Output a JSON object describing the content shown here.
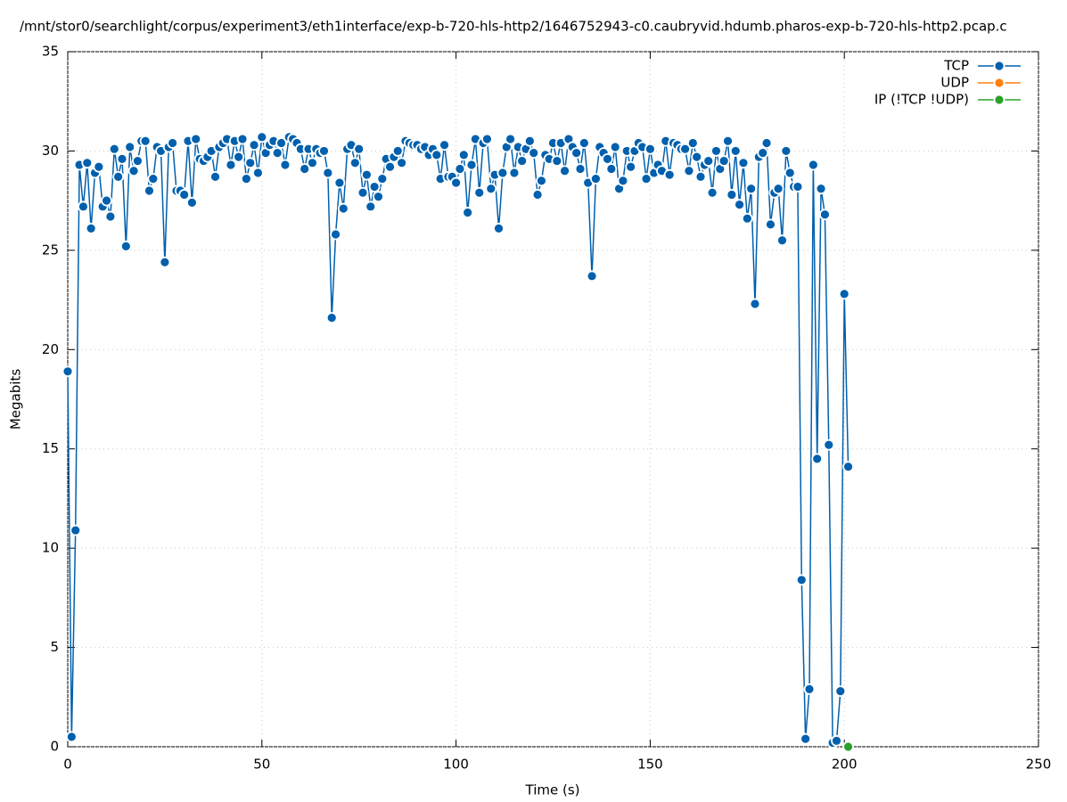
{
  "chart_data": {
    "type": "line",
    "title": "/mnt/stor0/searchlight/corpus/experiment3/eth1interface/exp-b-720-hls-http2/1646752943-c0.caubryvid.hdumb.pharos-exp-b-720-hls-http2.pcap.c",
    "x_label": "Time (s)",
    "y_label": "Megabits",
    "xlim": [
      0,
      250
    ],
    "xticks": [
      0,
      50,
      100,
      150,
      200,
      250
    ],
    "ylim": [
      0,
      35
    ],
    "yticks": [
      0,
      5,
      10,
      15,
      20,
      25,
      30,
      35
    ],
    "grid": true,
    "legend": "top-right",
    "series": [
      {
        "name": "TCP",
        "color": "#0060ad",
        "x": [
          0,
          1,
          2,
          3,
          4,
          5,
          6,
          7,
          8,
          9,
          10,
          11,
          12,
          13,
          14,
          15,
          16,
          17,
          18,
          19,
          20,
          21,
          22,
          23,
          24,
          25,
          26,
          27,
          28,
          29,
          30,
          31,
          32,
          33,
          34,
          35,
          36,
          37,
          38,
          39,
          40,
          41,
          42,
          43,
          44,
          45,
          46,
          47,
          48,
          49,
          50,
          51,
          52,
          53,
          54,
          55,
          56,
          57,
          58,
          59,
          60,
          61,
          62,
          63,
          64,
          65,
          66,
          67,
          68,
          69,
          70,
          71,
          72,
          73,
          74,
          75,
          76,
          77,
          78,
          79,
          80,
          81,
          82,
          83,
          84,
          85,
          86,
          87,
          88,
          89,
          90,
          91,
          92,
          93,
          94,
          95,
          96,
          97,
          98,
          99,
          100,
          101,
          102,
          103,
          104,
          105,
          106,
          107,
          108,
          109,
          110,
          111,
          112,
          113,
          114,
          115,
          116,
          117,
          118,
          119,
          120,
          121,
          122,
          123,
          124,
          125,
          126,
          127,
          128,
          129,
          130,
          131,
          132,
          133,
          134,
          135,
          136,
          137,
          138,
          139,
          140,
          141,
          142,
          143,
          144,
          145,
          146,
          147,
          148,
          149,
          150,
          151,
          152,
          153,
          154,
          155,
          156,
          157,
          158,
          159,
          160,
          161,
          162,
          163,
          164,
          165,
          166,
          167,
          168,
          169,
          170,
          171,
          172,
          173,
          174,
          175,
          176,
          177,
          178,
          179,
          180,
          181,
          182,
          183,
          184,
          185,
          186,
          187,
          188,
          189,
          190,
          191,
          192,
          193,
          194,
          195,
          196,
          197,
          198,
          199,
          200,
          201
        ],
        "values": [
          18.9,
          0.5,
          10.9,
          29.3,
          27.2,
          29.4,
          26.1,
          28.9,
          29.2,
          27.2,
          27.5,
          26.7,
          30.1,
          28.7,
          29.6,
          25.2,
          30.2,
          29.0,
          29.5,
          30.5,
          30.5,
          28.0,
          28.6,
          30.2,
          30.0,
          24.4,
          30.2,
          30.4,
          28.0,
          28.0,
          27.8,
          30.5,
          27.4,
          30.6,
          29.6,
          29.5,
          29.7,
          30.0,
          28.7,
          30.2,
          30.4,
          30.6,
          29.3,
          30.5,
          29.7,
          30.6,
          28.6,
          29.4,
          30.3,
          28.9,
          30.7,
          29.9,
          30.3,
          30.5,
          29.9,
          30.4,
          29.3,
          30.7,
          30.6,
          30.4,
          30.1,
          29.1,
          30.1,
          29.4,
          30.1,
          29.9,
          30.0,
          28.9,
          21.6,
          25.8,
          28.4,
          27.1,
          30.1,
          30.3,
          29.4,
          30.1,
          27.9,
          28.8,
          27.2,
          28.2,
          27.7,
          28.6,
          29.6,
          29.2,
          29.7,
          30.0,
          29.4,
          30.5,
          30.4,
          30.3,
          30.3,
          30.1,
          30.2,
          29.8,
          30.1,
          29.8,
          28.6,
          30.3,
          28.7,
          28.7,
          28.4,
          29.1,
          29.8,
          26.9,
          29.3,
          30.6,
          27.9,
          30.4,
          30.6,
          28.1,
          28.8,
          26.1,
          28.9,
          30.2,
          30.6,
          28.9,
          30.2,
          29.5,
          30.1,
          30.5,
          29.9,
          27.8,
          28.5,
          29.8,
          29.6,
          30.4,
          29.5,
          30.4,
          29.0,
          30.6,
          30.2,
          29.9,
          29.1,
          30.4,
          28.4,
          23.7,
          28.6,
          30.2,
          29.9,
          29.6,
          29.1,
          30.2,
          28.1,
          28.5,
          30.0,
          29.2,
          30.0,
          30.4,
          30.2,
          28.6,
          30.1,
          28.9,
          29.3,
          29.0,
          30.5,
          28.8,
          30.4,
          30.3,
          30.1,
          30.1,
          29.0,
          30.4,
          29.7,
          28.7,
          29.3,
          29.5,
          27.9,
          30.0,
          29.1,
          29.5,
          30.5,
          27.8,
          30.0,
          27.3,
          29.4,
          26.6,
          28.1,
          22.3,
          29.7,
          29.9,
          30.4,
          26.3,
          27.9,
          28.1,
          25.5,
          30.0,
          28.9,
          28.2,
          28.2,
          8.4,
          0.4,
          2.9,
          29.3,
          14.5,
          28.1,
          26.8,
          15.2,
          0.2,
          0.3,
          2.8,
          22.8,
          14.1
        ]
      },
      {
        "name": "UDP",
        "color": "#ff7f0e",
        "x": [],
        "values": []
      },
      {
        "name": "IP (!TCP  !UDP)",
        "color": "#2ca02c",
        "x": [
          201
        ],
        "values": [
          0
        ]
      }
    ]
  }
}
